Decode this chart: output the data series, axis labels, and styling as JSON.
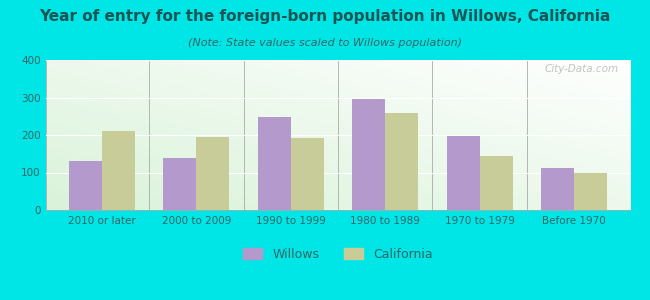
{
  "title": "Year of entry for the foreign-born population in Willows, California",
  "subtitle": "(Note: State values scaled to Willows population)",
  "categories": [
    "2010 or later",
    "2000 to 2009",
    "1990 to 1999",
    "1980 to 1989",
    "1970 to 1979",
    "Before 1970"
  ],
  "willows_values": [
    130,
    138,
    247,
    296,
    197,
    112
  ],
  "california_values": [
    212,
    196,
    193,
    258,
    145,
    98
  ],
  "willows_color": "#b399cc",
  "california_color": "#c8cc99",
  "background_color": "#00e5e5",
  "ylim": [
    0,
    400
  ],
  "yticks": [
    0,
    100,
    200,
    300,
    400
  ],
  "bar_width": 0.35,
  "title_fontsize": 11,
  "subtitle_fontsize": 8,
  "tick_fontsize": 7.5,
  "legend_fontsize": 9,
  "title_color": "#1a5555",
  "subtitle_color": "#336666",
  "tick_color": "#336666",
  "watermark": "City-Data.com"
}
